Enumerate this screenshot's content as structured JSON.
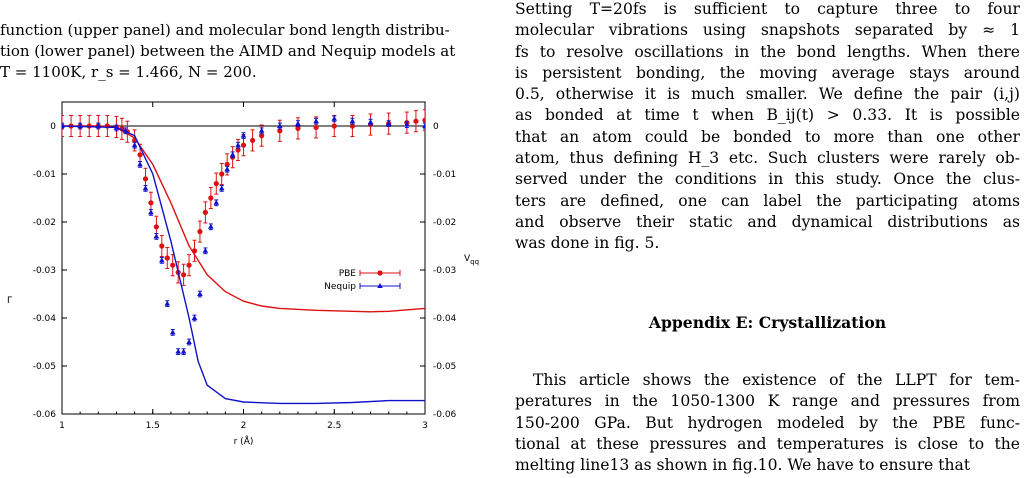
{
  "caption_lines": [
    "function (upper panel) and molecular bond length distribu-",
    "tion (lower panel) between the AIMD and Nequip models at",
    "T = 1100K,  r_s = 1.466,  N = 200."
  ],
  "right_column": {
    "para1_lines": [
      "Setting  T=20fs is sufficient to capture three to four",
      "molecular vibrations using snapshots separated by ≈ 1",
      "fs to resolve oscillations in the bond lengths. When there",
      "is persistent bonding, the moving average stays around",
      "0.5, otherwise it is much smaller. We define the pair (i,j)",
      "as bonded at time t when B_ij(t) > 0.33. It is possible",
      "that an atom could be bonded to more than one other",
      "atom, thus defining H_3 etc. Such clusters were rarely ob-",
      "served under the conditions in this study. Once the clus-",
      "ters are defined, one can label the participating atoms",
      "and observe their static and dynamical distributions as",
      "was done in fig. 5."
    ],
    "heading": "Appendix E: Crystallization",
    "para2_lines": [
      "This article shows the existence of the LLPT for tem-",
      "peratures in the 1050-1300 K range and pressures from",
      "150-200 GPa. But hydrogen modeled by the PBE func-",
      "tional at these pressures and temperatures is close to the",
      "melting line13 as shown in fig.10. We have to ensure that"
    ]
  },
  "chart_data": {
    "type": "line",
    "xlabel": "r (Å)",
    "ylabel_left": "Γ",
    "ylabel_right": "V_qq",
    "xlim": [
      1,
      3
    ],
    "ylim": [
      -0.06,
      0.005
    ],
    "x_ticks": [
      "1",
      "1.5",
      "2",
      "2.5",
      "3"
    ],
    "y_ticks_left": [
      "0",
      "-0.01",
      "-0.02",
      "-0.03",
      "-0.04",
      "-0.05",
      "-0.06"
    ],
    "y_ticks_right": [
      "0",
      "-0.01",
      "-0.02",
      "-0.03",
      "-0.04",
      "-0.05",
      "-0.06"
    ],
    "legend_position": "right",
    "colors": {
      "PBE": "#dd1111",
      "Nequip": "#1111cc",
      "zero_line": "#000000"
    },
    "series": [
      {
        "name": "PBE",
        "marker": "circle",
        "points": [
          [
            1.0,
            0.0
          ],
          [
            1.05,
            0.0
          ],
          [
            1.1,
            0.0
          ],
          [
            1.15,
            0.0
          ],
          [
            1.2,
            0.0
          ],
          [
            1.25,
            0.0
          ],
          [
            1.3,
            -0.0002
          ],
          [
            1.33,
            -0.0006
          ],
          [
            1.36,
            -0.0012
          ],
          [
            1.4,
            -0.003
          ],
          [
            1.43,
            -0.006
          ],
          [
            1.46,
            -0.011
          ],
          [
            1.49,
            -0.016
          ],
          [
            1.52,
            -0.021
          ],
          [
            1.55,
            -0.025
          ],
          [
            1.58,
            -0.0275
          ],
          [
            1.61,
            -0.029
          ],
          [
            1.64,
            -0.0305
          ],
          [
            1.67,
            -0.031
          ],
          [
            1.7,
            -0.029
          ],
          [
            1.73,
            -0.026
          ],
          [
            1.76,
            -0.022
          ],
          [
            1.79,
            -0.018
          ],
          [
            1.82,
            -0.015
          ],
          [
            1.85,
            -0.012
          ],
          [
            1.88,
            -0.01
          ],
          [
            1.91,
            -0.008
          ],
          [
            1.94,
            -0.0065
          ],
          [
            1.97,
            -0.005
          ],
          [
            2.0,
            -0.004
          ],
          [
            2.05,
            -0.003
          ],
          [
            2.1,
            -0.002
          ],
          [
            2.2,
            -0.001
          ],
          [
            2.3,
            -0.0005
          ],
          [
            2.4,
            -0.0003
          ],
          [
            2.5,
            0.0
          ],
          [
            2.6,
            0.0
          ],
          [
            2.7,
            0.0003
          ],
          [
            2.8,
            0.0005
          ],
          [
            2.9,
            0.0007
          ],
          [
            2.95,
            0.001
          ],
          [
            3.0,
            0.0012
          ]
        ],
        "err": 0.0022,
        "curve": [
          [
            1.0,
            0.0
          ],
          [
            1.2,
            0.0
          ],
          [
            1.3,
            -0.0003
          ],
          [
            1.4,
            -0.0025
          ],
          [
            1.5,
            -0.008
          ],
          [
            1.6,
            -0.016
          ],
          [
            1.7,
            -0.025
          ],
          [
            1.8,
            -0.031
          ],
          [
            1.9,
            -0.0345
          ],
          [
            2.0,
            -0.0365
          ],
          [
            2.1,
            -0.0375
          ],
          [
            2.2,
            -0.038
          ],
          [
            2.4,
            -0.0384
          ],
          [
            2.6,
            -0.0386
          ],
          [
            2.7,
            -0.0387
          ],
          [
            2.8,
            -0.0386
          ],
          [
            3.0,
            -0.038
          ]
        ]
      },
      {
        "name": "Nequip",
        "marker": "triangle",
        "points": [
          [
            1.0,
            0.0
          ],
          [
            1.1,
            0.0
          ],
          [
            1.2,
            0.0
          ],
          [
            1.3,
            -0.0004
          ],
          [
            1.35,
            -0.001
          ],
          [
            1.4,
            -0.004
          ],
          [
            1.43,
            -0.008
          ],
          [
            1.46,
            -0.013
          ],
          [
            1.49,
            -0.018
          ],
          [
            1.52,
            -0.023
          ],
          [
            1.55,
            -0.028
          ],
          [
            1.58,
            -0.037
          ],
          [
            1.61,
            -0.043
          ],
          [
            1.64,
            -0.047
          ],
          [
            1.67,
            -0.047
          ],
          [
            1.7,
            -0.045
          ],
          [
            1.73,
            -0.04
          ],
          [
            1.76,
            -0.035
          ],
          [
            1.79,
            -0.026
          ],
          [
            1.82,
            -0.021
          ],
          [
            1.85,
            -0.016
          ],
          [
            1.88,
            -0.013
          ],
          [
            1.91,
            -0.009
          ],
          [
            1.94,
            -0.006
          ],
          [
            1.97,
            -0.004
          ],
          [
            2.0,
            -0.002
          ],
          [
            2.1,
            -0.001
          ],
          [
            2.2,
            0.0
          ],
          [
            2.3,
            0.0005
          ],
          [
            2.4,
            0.001
          ],
          [
            2.5,
            0.0015
          ],
          [
            2.6,
            0.001
          ],
          [
            2.7,
            0.0008
          ],
          [
            2.8,
            0.0005
          ],
          [
            2.9,
            0.0003
          ],
          [
            3.0,
            0.0
          ]
        ],
        "err": 0.0006,
        "curve": [
          [
            1.0,
            0.0
          ],
          [
            1.3,
            -0.0003
          ],
          [
            1.4,
            -0.002
          ],
          [
            1.5,
            -0.01
          ],
          [
            1.6,
            -0.024
          ],
          [
            1.7,
            -0.04
          ],
          [
            1.75,
            -0.049
          ],
          [
            1.8,
            -0.054
          ],
          [
            1.9,
            -0.0568
          ],
          [
            2.0,
            -0.0575
          ],
          [
            2.2,
            -0.0578
          ],
          [
            2.4,
            -0.0578
          ],
          [
            2.6,
            -0.0576
          ],
          [
            2.8,
            -0.0572
          ],
          [
            3.0,
            -0.0572
          ]
        ]
      }
    ]
  }
}
